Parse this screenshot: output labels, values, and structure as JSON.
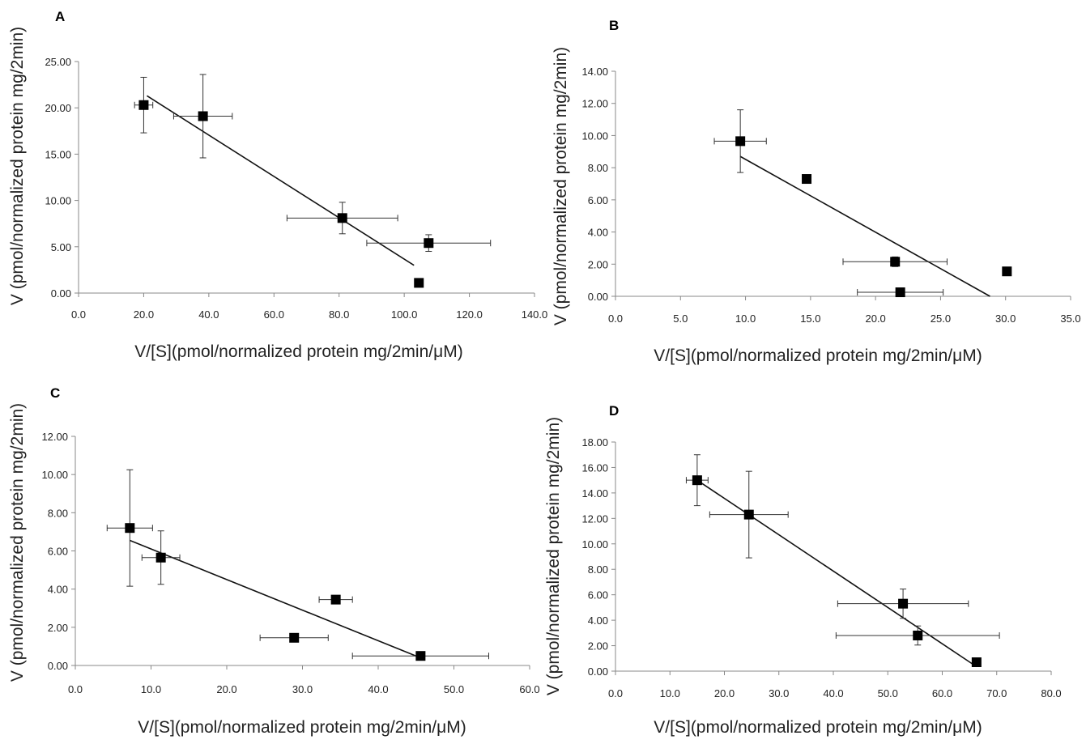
{
  "chart_data": [
    {
      "type": "scatter",
      "panel_label": "A",
      "xlabel": "V/[S](pmol/normalized protein mg/2min/μM)",
      "ylabel": "V (pmol/normalized protein mg/2min)",
      "xlim": [
        0,
        140
      ],
      "ylim": [
        0,
        25
      ],
      "x_ticks": [
        "0.0",
        "20.0",
        "40.0",
        "60.0",
        "80.0",
        "100.0",
        "120.0",
        "140.0"
      ],
      "y_ticks": [
        "0.00",
        "5.00",
        "10.00",
        "15.00",
        "20.00",
        "25.00"
      ],
      "points": [
        {
          "x": 20.0,
          "y": 20.3,
          "xerr": 2.8,
          "yerr": 3.0
        },
        {
          "x": 38.2,
          "y": 19.1,
          "xerr": 9.0,
          "yerr": 4.5
        },
        {
          "x": 81.0,
          "y": 8.1,
          "xerr": 17.0,
          "yerr": 1.7
        },
        {
          "x": 107.5,
          "y": 5.4,
          "xerr": 19.0,
          "yerr": 0.9
        },
        {
          "x": 104.5,
          "y": 1.1,
          "xerr": 0,
          "yerr": 0
        }
      ],
      "trendline": {
        "x": [
          21.0,
          103.0
        ],
        "y": [
          21.3,
          3.0
        ]
      }
    },
    {
      "type": "scatter",
      "panel_label": "B",
      "xlabel": "V/[S](pmol/normalized protein mg/2min/μM)",
      "ylabel": "V (pmol/normalized protein mg/2min)",
      "xlim": [
        0,
        35
      ],
      "ylim": [
        0,
        14
      ],
      "x_ticks": [
        "0.0",
        "5.0",
        "10.0",
        "15.0",
        "20.0",
        "25.0",
        "30.0",
        "35.0"
      ],
      "y_ticks": [
        "0.00",
        "2.00",
        "4.00",
        "6.00",
        "8.00",
        "10.00",
        "12.00",
        "14.00"
      ],
      "points": [
        {
          "x": 9.6,
          "y": 9.65,
          "xerr": 2.0,
          "yerr": 1.95
        },
        {
          "x": 14.7,
          "y": 7.3,
          "xerr": 0,
          "yerr": 0
        },
        {
          "x": 21.5,
          "y": 2.15,
          "xerr": 4.0,
          "yerr": 0.3
        },
        {
          "x": 21.9,
          "y": 0.25,
          "xerr": 3.3,
          "yerr": 0
        },
        {
          "x": 30.1,
          "y": 1.55,
          "xerr": 0,
          "yerr": 0
        }
      ],
      "trendline": {
        "x": [
          9.6,
          28.8
        ],
        "y": [
          8.7,
          0.0
        ]
      }
    },
    {
      "type": "scatter",
      "panel_label": "C",
      "xlabel": "V/[S](pmol/normalized protein mg/2min/μM)",
      "ylabel": "V (pmol/normalized protein mg/2min)",
      "xlim": [
        0,
        60
      ],
      "ylim": [
        0,
        12
      ],
      "x_ticks": [
        "0.0",
        "10.0",
        "20.0",
        "30.0",
        "40.0",
        "50.0",
        "60.0"
      ],
      "y_ticks": [
        "0.00",
        "2.00",
        "4.00",
        "6.00",
        "8.00",
        "10.00",
        "12.00"
      ],
      "points": [
        {
          "x": 7.2,
          "y": 7.2,
          "xerr": 3.0,
          "yerr": 3.05
        },
        {
          "x": 11.3,
          "y": 5.65,
          "xerr": 2.5,
          "yerr": 1.4
        },
        {
          "x": 34.4,
          "y": 3.45,
          "xerr": 2.2,
          "yerr": 0
        },
        {
          "x": 28.9,
          "y": 1.45,
          "xerr": 4.5,
          "yerr": 0
        },
        {
          "x": 45.6,
          "y": 0.5,
          "xerr": 9.0,
          "yerr": 0
        }
      ],
      "trendline": {
        "x": [
          7.2,
          45.6
        ],
        "y": [
          6.55,
          0.4
        ]
      }
    },
    {
      "type": "scatter",
      "panel_label": "D",
      "xlabel": "V/[S](pmol/normalized protein mg/2min/μM)",
      "ylabel": "V (pmol/normalized protein mg/2min)",
      "xlim": [
        0,
        80
      ],
      "ylim": [
        0,
        18
      ],
      "x_ticks": [
        "0.0",
        "10.0",
        "20.0",
        "30.0",
        "40.0",
        "50.0",
        "60.0",
        "70.0",
        "80.0"
      ],
      "y_ticks": [
        "0.00",
        "2.00",
        "4.00",
        "6.00",
        "8.00",
        "10.00",
        "12.00",
        "14.00",
        "16.00",
        "18.00"
      ],
      "points": [
        {
          "x": 15.0,
          "y": 15.0,
          "xerr": 2.0,
          "yerr": 2.0
        },
        {
          "x": 24.5,
          "y": 12.3,
          "xerr": 7.2,
          "yerr": 3.4
        },
        {
          "x": 52.8,
          "y": 5.3,
          "xerr": 12.0,
          "yerr": 1.15
        },
        {
          "x": 55.5,
          "y": 2.8,
          "xerr": 15.0,
          "yerr": 0.75
        },
        {
          "x": 66.3,
          "y": 0.7,
          "xerr": 0,
          "yerr": 0
        }
      ],
      "trendline": {
        "x": [
          15.0,
          66.3
        ],
        "y": [
          15.0,
          0.35
        ]
      }
    }
  ]
}
